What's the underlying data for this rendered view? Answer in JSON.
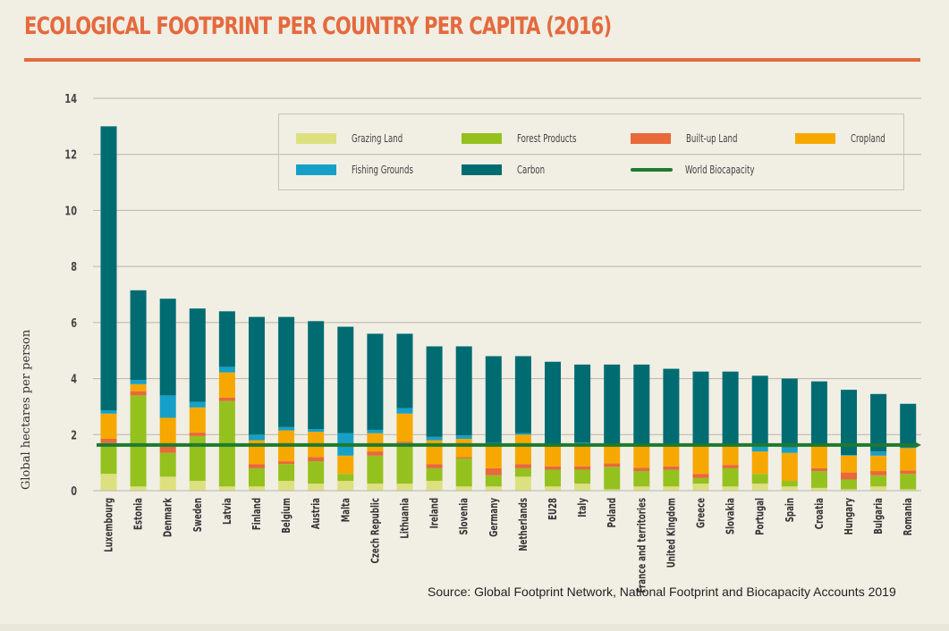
{
  "header": {
    "title": "ECOLOGICAL FOOTPRINT PER COUNTRY PER CAPITA (2016)"
  },
  "source": "Source: Global Footprint Network, National Footprint and Biocapacity Accounts 2019",
  "colors": {
    "accent": "#e46a3d",
    "grazing": "#dde07f",
    "forest": "#95c11f",
    "builtup": "#e8693a",
    "cropland": "#f6a800",
    "fishing": "#16a0c8",
    "carbon": "#006c72",
    "biocapacity": "#1e7b2e",
    "grid": "#b9b5a8"
  },
  "chart_data": {
    "type": "bar",
    "stacked": true,
    "title": "ECOLOGICAL FOOTPRINT PER COUNTRY PER CAPITA (2016)",
    "xlabel": "",
    "ylabel": "Global hectares per person",
    "ylim": [
      0,
      14
    ],
    "yticks": [
      0,
      2,
      4,
      6,
      8,
      10,
      12,
      14
    ],
    "grid": true,
    "legend_position": "top",
    "categories": [
      "Luxembourg",
      "Estonia",
      "Denmark",
      "Sweden",
      "Latvia",
      "Finland",
      "Belgium",
      "Austria",
      "Malta",
      "Czech Republic",
      "Lithuania",
      "Ireland",
      "Slovenia",
      "Germany",
      "Netherlands",
      "EU28",
      "Italy",
      "Poland",
      "France and territories",
      "United Kingdom",
      "Greece",
      "Slovakia",
      "Portugal",
      "Spain",
      "Croatia",
      "Hungary",
      "Bulgaria",
      "Romania"
    ],
    "series": [
      {
        "key": "grazing",
        "name": "Grazing Land",
        "values": [
          0.6,
          0.15,
          0.5,
          0.35,
          0.15,
          0.15,
          0.35,
          0.25,
          0.35,
          0.25,
          0.25,
          0.35,
          0.15,
          0.15,
          0.5,
          0.15,
          0.25,
          0.05,
          0.15,
          0.15,
          0.25,
          0.15,
          0.25,
          0.15,
          0.1,
          0.05,
          0.15,
          0.05
        ]
      },
      {
        "key": "forest",
        "name": "Forest Products",
        "values": [
          1.1,
          3.25,
          0.85,
          1.6,
          3.05,
          0.65,
          0.6,
          0.8,
          0.25,
          1.0,
          1.45,
          0.45,
          1.0,
          0.4,
          0.3,
          0.6,
          0.5,
          0.8,
          0.55,
          0.6,
          0.2,
          0.65,
          0.35,
          0.2,
          0.6,
          0.35,
          0.4,
          0.55
        ]
      },
      {
        "key": "builtup",
        "name": "Built-up Land",
        "values": [
          0.15,
          0.15,
          0.25,
          0.12,
          0.12,
          0.15,
          0.1,
          0.15,
          0.0,
          0.15,
          0.05,
          0.15,
          0.05,
          0.25,
          0.15,
          0.12,
          0.12,
          0.12,
          0.12,
          0.12,
          0.15,
          0.12,
          0.0,
          0.0,
          0.1,
          0.25,
          0.15,
          0.12
        ]
      },
      {
        "key": "cropland",
        "name": "Cropland",
        "values": [
          0.9,
          0.25,
          1.0,
          0.9,
          0.9,
          0.85,
          1.1,
          0.9,
          0.65,
          0.65,
          1.0,
          0.85,
          0.65,
          0.85,
          1.05,
          0.8,
          0.8,
          0.7,
          0.8,
          0.75,
          1.05,
          0.75,
          0.8,
          1.0,
          0.85,
          0.6,
          0.55,
          0.8
        ]
      },
      {
        "key": "fishing",
        "name": "Fishing Grounds",
        "values": [
          0.12,
          0.15,
          0.8,
          0.2,
          0.2,
          0.2,
          0.12,
          0.1,
          0.8,
          0.12,
          0.2,
          0.12,
          0.12,
          0.05,
          0.05,
          0.02,
          0.05,
          0.02,
          0.02,
          0.02,
          0.02,
          0.02,
          0.2,
          0.2,
          0.02,
          0.02,
          0.15,
          0.02
        ]
      },
      {
        "key": "carbon",
        "name": "Carbon",
        "values": [
          10.13,
          3.2,
          3.45,
          3.33,
          1.98,
          4.2,
          3.93,
          3.85,
          3.8,
          3.43,
          2.65,
          3.23,
          3.18,
          3.1,
          2.75,
          2.91,
          2.78,
          2.81,
          2.86,
          2.71,
          2.58,
          2.56,
          2.5,
          2.45,
          2.23,
          2.33,
          2.05,
          1.56
        ]
      }
    ],
    "totals": [
      13.0,
      7.1,
      6.85,
      6.5,
      6.4,
      6.2,
      6.2,
      6.05,
      5.85,
      5.6,
      5.6,
      5.15,
      5.15,
      4.8,
      4.8,
      4.6,
      4.5,
      4.5,
      4.5,
      4.35,
      4.25,
      4.25,
      4.1,
      4.0,
      3.9,
      3.6,
      3.45,
      3.1
    ],
    "reference_line": {
      "name": "World Biocapacity",
      "value": 1.63
    }
  },
  "legend": [
    {
      "key": "grazing",
      "label": "Grazing Land",
      "type": "box"
    },
    {
      "key": "forest",
      "label": "Forest Products",
      "type": "box"
    },
    {
      "key": "builtup",
      "label": "Built-up Land",
      "type": "box"
    },
    {
      "key": "cropland",
      "label": "Cropland",
      "type": "box"
    },
    {
      "key": "fishing",
      "label": "Fishing Grounds",
      "type": "box"
    },
    {
      "key": "carbon",
      "label": "Carbon",
      "type": "box"
    },
    {
      "key": "biocapacity",
      "label": "World Biocapacity",
      "type": "line"
    }
  ]
}
